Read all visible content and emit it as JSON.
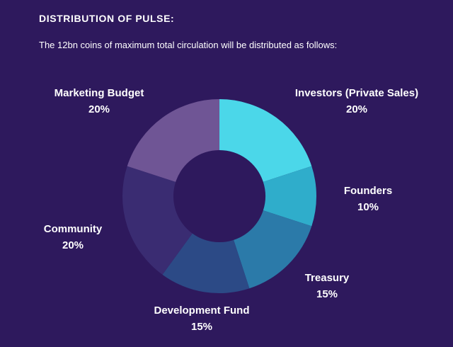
{
  "page": {
    "title": "DISTRIBUTION OF PULSE:",
    "subtitle": "The 12bn coins of maximum total circulation will be distributed as follows:",
    "background_color": "#2e195d",
    "text_color": "#ffffff"
  },
  "chart_data": {
    "type": "pie",
    "variant": "donut",
    "title": "DISTRIBUTION OF PULSE:",
    "subtitle": "The 12bn coins of maximum total circulation will be distributed as follows:",
    "categories": [
      "Investors (Private Sales)",
      "Founders",
      "Treasury",
      "Development Fund",
      "Community",
      "Marketing Budget"
    ],
    "values": [
      20,
      10,
      15,
      15,
      20,
      20
    ],
    "unit": "%",
    "colors": [
      "#4bd7e9",
      "#2fadcb",
      "#2b7aa9",
      "#2c4a86",
      "#3a2c72",
      "#6f5595"
    ],
    "start_angle_deg": 0,
    "direction": "clockwise",
    "inner_radius_ratio": 0.475,
    "legend_position": "labels-around-chart",
    "label_items": [
      {
        "name": "Marketing Budget",
        "value": "20%"
      },
      {
        "name": "Investors (Private Sales)",
        "value": "20%"
      },
      {
        "name": "Founders",
        "value": "10%"
      },
      {
        "name": "Treasury",
        "value": "15%"
      },
      {
        "name": "Development Fund",
        "value": "15%"
      },
      {
        "name": "Community",
        "value": "20%"
      }
    ]
  }
}
